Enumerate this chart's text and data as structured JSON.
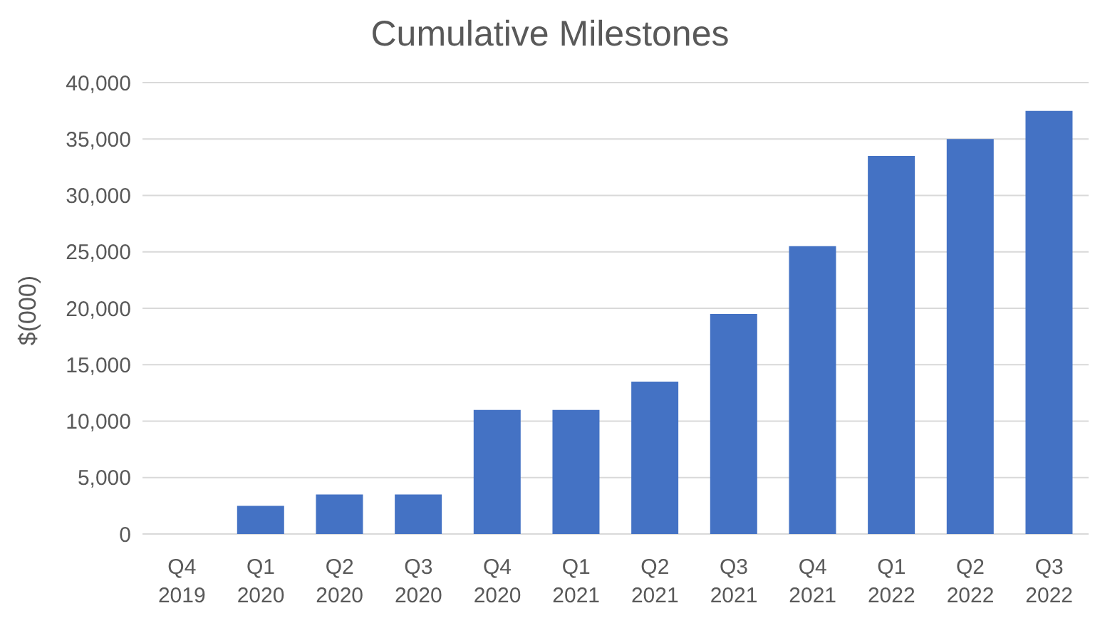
{
  "chart_data": {
    "type": "bar",
    "title": "Cumulative Milestones",
    "ylabel": "$(000)",
    "categories": [
      "Q4 2019",
      "Q1 2020",
      "Q2 2020",
      "Q3 2020",
      "Q4 2020",
      "Q1 2021",
      "Q2 2021",
      "Q3 2021",
      "Q4 2021",
      "Q1 2022",
      "Q2 2022",
      "Q3 2022"
    ],
    "values": [
      0,
      2500,
      3500,
      3500,
      11000,
      11000,
      13500,
      19500,
      25500,
      33500,
      35000,
      37500
    ],
    "color": "#4472c4",
    "ylim": [
      0,
      40000
    ],
    "yticks": [
      0,
      {
        "value": 5000,
        "label": "5,000"
      },
      {
        "value": 10000,
        "label": "10,000"
      },
      {
        "value": 15000,
        "label": "15,000"
      },
      {
        "value": 20000,
        "label": "20,000"
      },
      {
        "value": 25000,
        "label": "25,000"
      },
      {
        "value": 30000,
        "label": "30,000"
      },
      {
        "value": 35000,
        "label": "35,000"
      },
      {
        "value": 40000,
        "label": "40,000"
      }
    ],
    "grid": "y",
    "legend": false
  }
}
